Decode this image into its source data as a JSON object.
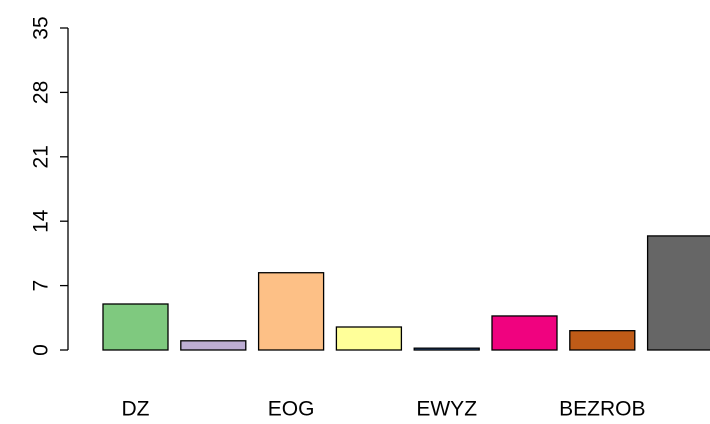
{
  "chart_data": {
    "type": "bar",
    "categories": [
      "DZ",
      null,
      "EOG",
      null,
      "EWYZ",
      null,
      "BEZROB",
      null
    ],
    "values": [
      5,
      1,
      8.4,
      2.5,
      0.2,
      3.7,
      2.1,
      12.4
    ],
    "colors": [
      "#7FC97F",
      "#BEAED4",
      "#FDC086",
      "#FFFF99",
      "#386CB0",
      "#F0027F",
      "#BF5B17",
      "#666666"
    ],
    "ylim": [
      0,
      35
    ],
    "yticks": [
      0,
      7,
      14,
      21,
      28,
      35
    ],
    "grid": false
  }
}
